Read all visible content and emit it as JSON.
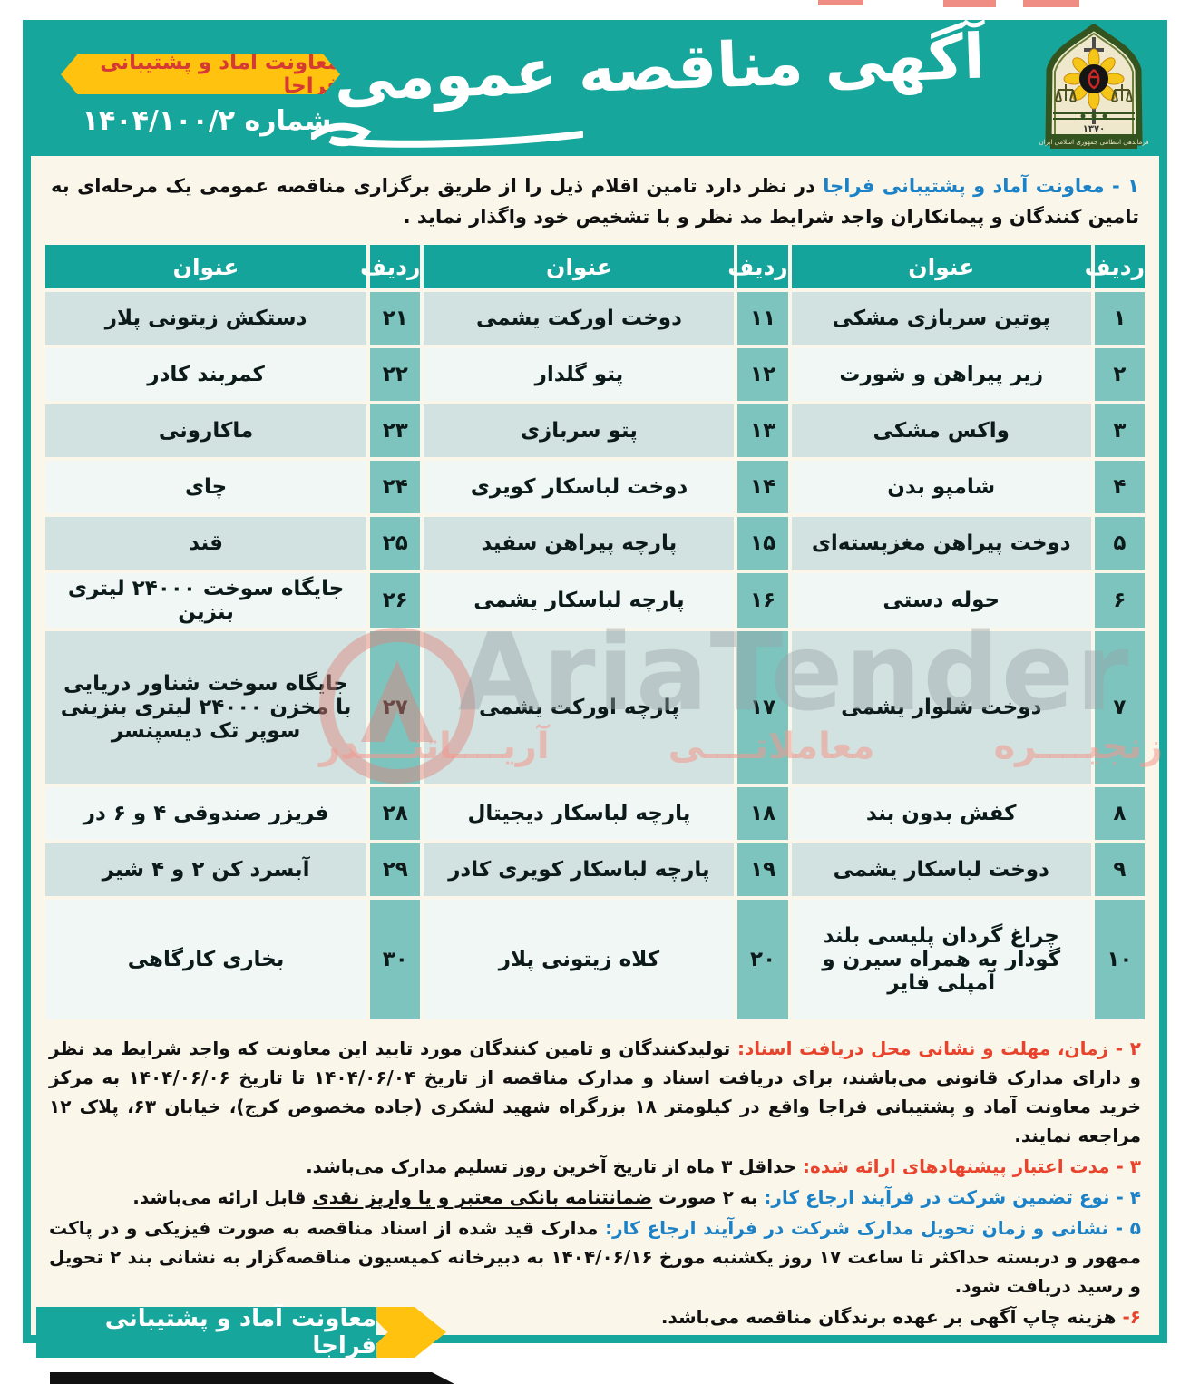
{
  "header": {
    "title": "آگهی مناقصه عمومی",
    "badge": "معاونت آماد و پشتیبانی فراجا",
    "number_label": "شماره ۱۴۰۴/۱۰۰/۲",
    "logo": {
      "name": "faraja-police-emblem",
      "year": "۱۳۷۰",
      "caption": "فرماندهی انتظامی جمهوری اسلامی ایران"
    }
  },
  "intro": {
    "lead": "۱ - معاونت آماد و پشتیبانی فراجا",
    "body": " در نظر دارد تامین اقلام ذیل را از طریق برگزاری مناقصه عمومی یک مرحله‌ای به تامین کنندگان و پیمانکاران واجد شرایط مد نظر و با تشخیص خود واگذار نماید ."
  },
  "table": {
    "headers": [
      "ردیف",
      "عنوان",
      "ردیف",
      "عنوان",
      "ردیف",
      "عنوان"
    ],
    "rows": [
      {
        "r1": "۱",
        "t1": "پوتین سربازی مشکی",
        "r2": "۱۱",
        "t2": "دوخت اورکت یشمی",
        "r3": "۲۱",
        "t3": "دستکش زیتونی پلار",
        "h": "reg"
      },
      {
        "r1": "۲",
        "t1": "زیر پیراهن و شورت",
        "r2": "۱۲",
        "t2": "پتو گلدار",
        "r3": "۲۲",
        "t3": "کمربند کادر",
        "h": "reg"
      },
      {
        "r1": "۳",
        "t1": "واکس مشکی",
        "r2": "۱۳",
        "t2": "پتو سربازی",
        "r3": "۲۳",
        "t3": "ماکارونی",
        "h": "reg"
      },
      {
        "r1": "۴",
        "t1": "شامپو بدن",
        "r2": "۱۴",
        "t2": "دوخت لباسکار کویری",
        "r3": "۲۴",
        "t3": "چای",
        "h": "reg"
      },
      {
        "r1": "۵",
        "t1": "دوخت پیراهن مغزپسته‌ای",
        "r2": "۱۵",
        "t2": "پارچه پیراهن سفید",
        "r3": "۲۵",
        "t3": "قند",
        "h": "reg"
      },
      {
        "r1": "۶",
        "t1": "حوله دستی",
        "r2": "۱۶",
        "t2": "پارچه لباسکار یشمی",
        "r3": "۲۶",
        "t3": "جایگاه سوخت ۲۴۰۰۰ لیتری بنزین",
        "h": "reg"
      },
      {
        "r1": "۷",
        "t1": "دوخت شلوار یشمی",
        "r2": "۱۷",
        "t2": "پارچه اورکت یشمی",
        "r3": "۲۷",
        "t3": "جایگاه سوخت شناور دریایی با مخزن ۲۴۰۰۰ لیتری بنزینی سوپر تک دیسپنسر",
        "h": "tall"
      },
      {
        "r1": "۸",
        "t1": "کفش بدون بند",
        "r2": "۱۸",
        "t2": "پارچه لباسکار دیجیتال",
        "r3": "۲۸",
        "t3": "فریزر صندوقی ۴ و ۶ در",
        "h": "reg"
      },
      {
        "r1": "۹",
        "t1": "دوخت لباسکار یشمی",
        "r2": "۱۹",
        "t2": "پارچه لباسکار کویری کادر",
        "r3": "۲۹",
        "t3": "آبسرد کن ۲ و ۴ شیر",
        "h": "reg"
      },
      {
        "r1": "۱۰",
        "t1": "چراغ گردان پلیسی بلند گودار به همراه سیرن و آمپلی فایر",
        "r2": "۲۰",
        "t2": "کلاه زیتونی پلار",
        "r3": "۳۰",
        "t3": "بخاری کارگاهی",
        "h": "mid"
      }
    ]
  },
  "sections": {
    "s2": {
      "heading": "۲ - زمان، مهلت و نشانی محل دریافت اسناد:",
      "body": " تولیدکنندگان و تامین کنندگان مورد تایید این معاونت که واجد شرایط مد نظر و دارای مدارک قانونی می‌باشند، برای دریافت اسناد و مدارک مناقصه از تاریخ ۱۴۰۴/۰۶/۰۴ تا تاریخ ۱۴۰۴/۰۶/۰۶ به مرکز خرید معاونت آماد و پشتیبانی فراجا واقع در کیلومتر ۱۸ بزرگراه شهید لشکری (جاده مخصوص کرج)، خیابان ۶۳، پلاک ۱۲ مراجعه نمایند."
    },
    "s3": {
      "heading": "۳ - مدت اعتبار پیشنهادهای ارائه شده:",
      "body": " حداقل ۳ ماه از تاریخ آخرین روز تسلیم مدارک می‌باشد."
    },
    "s4": {
      "heading": "۴ - نوع تضمین شرکت در فرآیند ارجاع کار:",
      "body_prefix": " به ۲ صورت ",
      "body_underlined": "ضمانتنامه بانکی معتبر و یا واریز نقدی",
      "body_suffix": " قابل ارائه می‌باشد."
    },
    "s5": {
      "heading": "۵ - نشانی و زمان تحویل مدارک شرکت در فرآیند ارجاع کار:",
      "body": " مدارک قید شده از اسناد مناقصه به صورت فیزیکی و در پاکت ممهور و دربسته حداکثر تا ساعت ۱۷ روز یکشنبه مورخ ۱۴۰۴/۰۶/۱۶ به دبیرخانه کمیسیون مناقصه‌گزار به نشانی بند ۲ تحویل و رسید دریافت شود."
    },
    "s6": {
      "num": "۶-",
      "body": " هزینه چاپ آگهی بر عهده برندگان مناقصه می‌باشد."
    }
  },
  "footer": {
    "ribbon": "معاونت آماد و پشتیبانی فراجا"
  },
  "watermark": {
    "latin": "AriaTender",
    "persian": "زنجیــــره معاملاتــــی آریــــاتنــــدر"
  },
  "colors": {
    "teal": "#17A69C",
    "yellow": "#FFC20E",
    "red": "#E8432C",
    "blue": "#1B82C8",
    "cream": "#FAF6E9"
  }
}
